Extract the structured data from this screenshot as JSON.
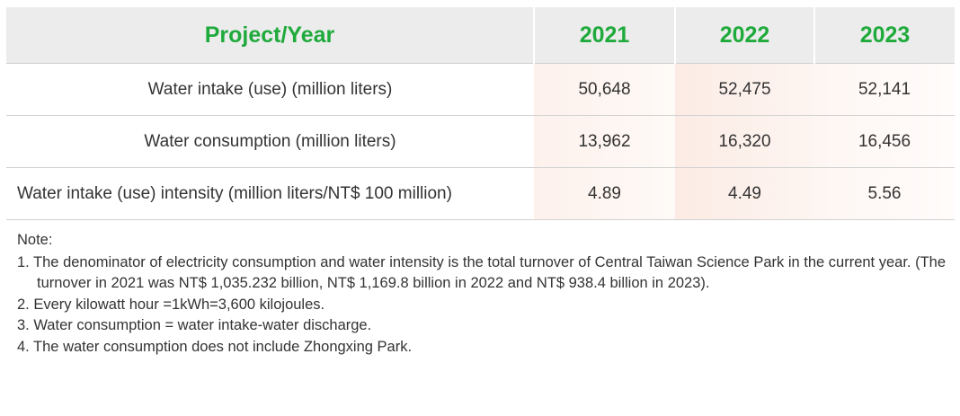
{
  "table": {
    "header": {
      "project": "Project/Year",
      "years": [
        "2021",
        "2022",
        "2023"
      ]
    },
    "rows": [
      {
        "label": "Water intake (use) (million liters)",
        "values": [
          "50,648",
          "52,475",
          "52,141"
        ]
      },
      {
        "label": "Water consumption (million liters)",
        "values": [
          "13,962",
          "16,320",
          "16,456"
        ]
      },
      {
        "label": "Water intake (use) intensity (million liters/NT$ 100 million)",
        "values": [
          "4.89",
          "4.49",
          "5.56"
        ]
      }
    ]
  },
  "notes": {
    "title": "Note:",
    "items": [
      "1. The denominator of electricity consumption and water intensity is the total turnover of Central Taiwan Science Park in the current year. (The turnover in 2021 was NT$ 1,035.232 billion, NT$ 1,169.8 billion in 2022 and NT$ 938.4 billion in 2023).",
      "2. Every kilowatt hour =1kWh=3,600 kilojoules.",
      "3. Water consumption = water intake-water discharge.",
      "4. The water consumption does not include Zhongxing Park."
    ]
  },
  "colors": {
    "header_text": "#1faa3c",
    "header_bg": "#ececec",
    "highlight_bg": "#fcebe4"
  }
}
